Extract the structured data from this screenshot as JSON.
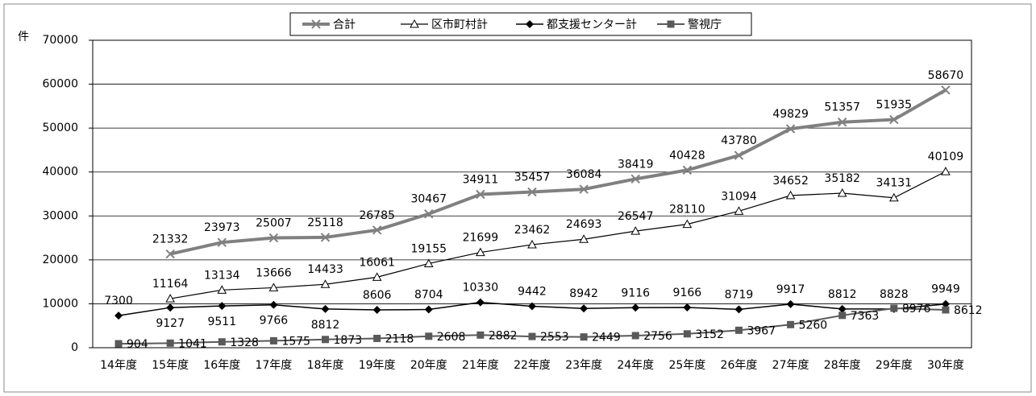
{
  "chart_data": {
    "type": "line",
    "y_label": "件",
    "categories": [
      "14年度",
      "15年度",
      "16年度",
      "17年度",
      "18年度",
      "19年度",
      "20年度",
      "21年度",
      "22年度",
      "23年度",
      "24年度",
      "25年度",
      "26年度",
      "27年度",
      "28年度",
      "29年度",
      "30年度"
    ],
    "series": [
      {
        "name": "合計",
        "color": "#808080",
        "marker": "x",
        "values": [
          null,
          21332,
          23973,
          25007,
          25118,
          26785,
          30467,
          34911,
          35457,
          36084,
          38419,
          40428,
          43780,
          49829,
          51357,
          51935,
          58670
        ]
      },
      {
        "name": "区市町村計",
        "color": "#000000",
        "marker": "triangle",
        "values": [
          null,
          11164,
          13134,
          13666,
          14433,
          16061,
          19155,
          21699,
          23462,
          24693,
          26547,
          28110,
          31094,
          34652,
          35182,
          34131,
          40109
        ]
      },
      {
        "name": "都支援センター計",
        "color": "#000000",
        "marker": "diamond",
        "values": [
          7300,
          9127,
          9511,
          9766,
          8812,
          8606,
          8704,
          10330,
          9442,
          8942,
          9116,
          9166,
          8719,
          9917,
          8812,
          8828,
          9949
        ]
      },
      {
        "name": "警視庁",
        "color": "#595959",
        "marker": "square",
        "values": [
          904,
          1041,
          1328,
          1575,
          1873,
          2118,
          2608,
          2882,
          2553,
          2449,
          2756,
          3152,
          3967,
          5260,
          7363,
          8976,
          8612
        ]
      }
    ],
    "ylim": [
      0,
      70000
    ],
    "yticks": [
      0,
      10000,
      20000,
      30000,
      40000,
      50000,
      60000,
      70000
    ],
    "grid": true
  }
}
